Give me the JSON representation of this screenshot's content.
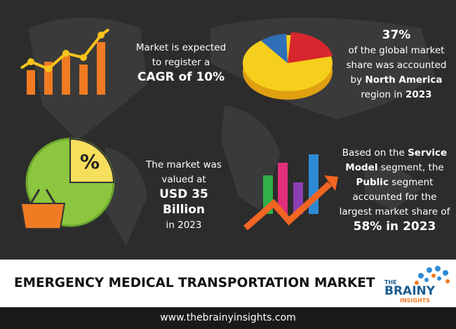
{
  "blocks": [
    {
      "lines": [
        [
          {
            "text": "Market is expected"
          }
        ],
        [
          {
            "text": "to register a"
          }
        ],
        [
          {
            "text": "CAGR of 10%",
            "bold": true
          }
        ]
      ]
    },
    {
      "lines": [
        [
          {
            "text": "37%",
            "bold": true
          }
        ],
        [
          {
            "text": "of the global market"
          }
        ],
        [
          {
            "text": "share was accounted"
          }
        ],
        [
          {
            "text": "by "
          },
          {
            "text": "North America",
            "bold": true
          }
        ],
        [
          {
            "text": "region in "
          },
          {
            "text": "2023",
            "bold": true
          }
        ]
      ]
    },
    {
      "lines": [
        [
          {
            "text": "The market was"
          }
        ],
        [
          {
            "text": "valued at"
          }
        ],
        [
          {
            "text": "USD 35",
            "bold": true
          }
        ],
        [
          {
            "text": "Billion",
            "bold": true
          }
        ],
        [
          {
            "text": "in 2023"
          }
        ]
      ]
    },
    {
      "lines": [
        [
          {
            "text": "Based on the "
          },
          {
            "text": "Service",
            "bold": true
          }
        ],
        [
          {
            "text": "Model",
            "bold": true
          },
          {
            "text": " segment, the"
          }
        ],
        [
          {
            "text": "Public",
            "bold": true
          },
          {
            "text": " segment"
          }
        ],
        [
          {
            "text": "accounted for the"
          }
        ],
        [
          {
            "text": "largest market share of"
          }
        ],
        [
          {
            "text": "58% in 2023",
            "bold": true
          }
        ]
      ]
    }
  ],
  "icon_label": "%",
  "title": "EMERGENCY MEDICAL TRANSPORTATION MARKET",
  "logo": {
    "top": "THE",
    "middle": "BRAINY",
    "bottom": "INSIGHTS"
  },
  "footer": "www.thebrainyinsights.com"
}
